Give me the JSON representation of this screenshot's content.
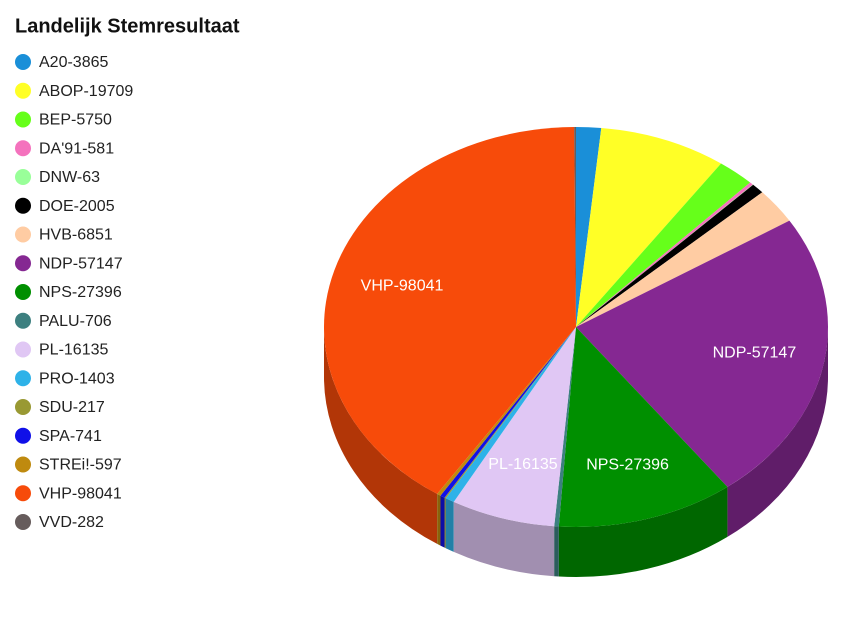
{
  "chart_data": {
    "type": "pie3d",
    "title": "Landelijk Stemresultaat",
    "categories": [
      "A20-3865",
      "ABOP-19709",
      "BEP-5750",
      "DA'91-581",
      "DNW-63",
      "DOE-2005",
      "HVB-6851",
      "NDP-57147",
      "NPS-27396",
      "PALU-706",
      "PL-16135",
      "PRO-1403",
      "SDU-217",
      "SPA-741",
      "STREi!-597",
      "VHP-98041",
      "VVD-282"
    ],
    "values": [
      3865,
      19709,
      5750,
      581,
      63,
      2005,
      6851,
      57147,
      27396,
      706,
      16135,
      1403,
      217,
      741,
      597,
      98041,
      282
    ],
    "value_labels": [
      null,
      null,
      null,
      null,
      null,
      null,
      null,
      "NDP-57147",
      "NPS-27396",
      null,
      "PL-16135",
      null,
      null,
      null,
      null,
      "VHP-98041",
      null
    ],
    "colors": [
      "#1a8fd8",
      "#ffff26",
      "#66ff1a",
      "#f472bd",
      "#99ff99",
      "#000000",
      "#ffcca3",
      "#852892",
      "#008f00",
      "#3d8080",
      "#e0c7f4",
      "#2eb2e8",
      "#999933",
      "#1010e8",
      "#bf8a0f",
      "#f74b0a",
      "#665c5c"
    ],
    "legend": "left"
  }
}
